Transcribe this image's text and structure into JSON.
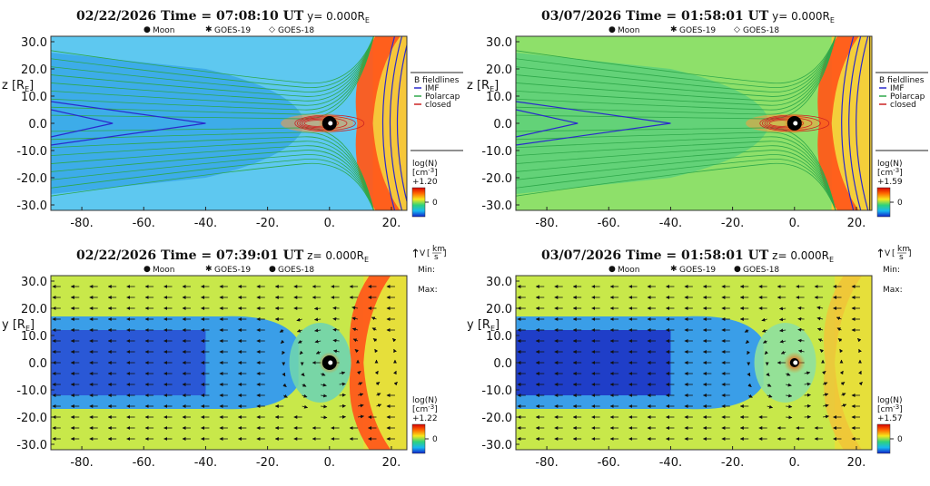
{
  "colors": {
    "imf": "#2a2acc",
    "polarcap": "#2fa84a",
    "closed": "#cc2222"
  },
  "chart_data": [
    {
      "id": "p1",
      "type": "heatmap",
      "plane": "xz",
      "date": "02/22/2026",
      "time_label": "Time",
      "time": "07:08:10",
      "time_unit": "UT",
      "slice_axis": "y",
      "slice_value": "0.000",
      "slice_unit": "R",
      "slice_unit_sub": "E",
      "markers": [
        "Moon",
        "GOES-19",
        "GOES-18"
      ],
      "ylabel": "z",
      "ylabel_unit": "R",
      "ylabel_unit_sub": "E",
      "xticks": [
        "-80.",
        "-60.",
        "-40.",
        "-20.",
        "0.",
        "20."
      ],
      "xtick_values": [
        -80,
        -60,
        -40,
        -20,
        0,
        20
      ],
      "yticks": [
        "30.0",
        "20.0",
        "10.0",
        "0.0",
        "-10.0",
        "-20.0",
        "-30.0"
      ],
      "ytick_values": [
        30,
        20,
        10,
        0,
        -10,
        -20,
        -30
      ],
      "xlim": [
        -90,
        25
      ],
      "ylim": [
        -32,
        32
      ],
      "magnetopause_standoff": 9,
      "bowshock_standoff": 14,
      "legend_title": "B fieldlines",
      "legend": [
        "IMF",
        "Polarcap",
        "closed"
      ],
      "colorbar_title": "log(N)",
      "colorbar_unit": "[cm",
      "colorbar_exp": "-3",
      "colorbar_max": "+1.20",
      "colorbar_mid": "0"
    },
    {
      "id": "p2",
      "type": "heatmap",
      "plane": "xz",
      "date": "03/07/2026",
      "time_label": "Time",
      "time": "01:58:01",
      "time_unit": "UT",
      "slice_axis": "y",
      "slice_value": "0.000",
      "slice_unit": "R",
      "slice_unit_sub": "E",
      "markers": [
        "Moon",
        "GOES-19",
        "GOES-18"
      ],
      "ylabel": "z",
      "ylabel_unit": "R",
      "ylabel_unit_sub": "E",
      "xticks": [
        "-80.",
        "-60.",
        "-40.",
        "-20.",
        "0.",
        "20."
      ],
      "xtick_values": [
        -80,
        -60,
        -40,
        -20,
        0,
        20
      ],
      "yticks": [
        "30.0",
        "20.0",
        "10.0",
        "0.0",
        "-10.0",
        "-20.0",
        "-30.0"
      ],
      "ytick_values": [
        30,
        20,
        10,
        0,
        -10,
        -20,
        -30
      ],
      "xlim": [
        -90,
        25
      ],
      "ylim": [
        -32,
        32
      ],
      "magnetopause_standoff": 8,
      "bowshock_standoff": 12,
      "legend_title": "B fieldlines",
      "legend": [
        "IMF",
        "Polarcap",
        "closed"
      ],
      "colorbar_title": "log(N)",
      "colorbar_unit": "[cm",
      "colorbar_exp": "-3",
      "colorbar_max": "+1.59",
      "colorbar_mid": "0"
    },
    {
      "id": "p3",
      "type": "heatmap",
      "plane": "xy",
      "date": "02/22/2026",
      "time_label": "Time",
      "time": "07:39:01",
      "time_unit": "UT",
      "slice_axis": "z",
      "slice_value": "0.000",
      "slice_unit": "R",
      "slice_unit_sub": "E",
      "markers": [
        "Moon",
        "GOES-19",
        "GOES-18"
      ],
      "ylabel": "y",
      "ylabel_unit": "R",
      "ylabel_unit_sub": "E",
      "xticks": [
        "-80.",
        "-60.",
        "-40.",
        "-20.",
        "0.",
        "20."
      ],
      "xtick_values": [
        -80,
        -60,
        -40,
        -20,
        0,
        20
      ],
      "yticks": [
        "30.0",
        "20.0",
        "10.0",
        "0.0",
        "-10.0",
        "-20.0",
        "-30.0"
      ],
      "ytick_values": [
        30,
        20,
        10,
        0,
        -10,
        -20,
        -30
      ],
      "xlim": [
        -90,
        25
      ],
      "ylim": [
        -32,
        32
      ],
      "magnetopause_standoff": 7,
      "bowshock_standoff": 11,
      "vector_label": "V",
      "vector_unit_num": "km",
      "vector_unit_den": "s",
      "vector_min_label": "Min:",
      "vector_max_label": "Max:",
      "colorbar_title": "log(N)",
      "colorbar_unit": "[cm",
      "colorbar_exp": "-3",
      "colorbar_max": "+1.22",
      "colorbar_mid": "0"
    },
    {
      "id": "p4",
      "type": "heatmap",
      "plane": "xy",
      "date": "03/07/2026",
      "time_label": "Time",
      "time": "01:58:01",
      "time_unit": "UT",
      "slice_axis": "z",
      "slice_value": "0.000",
      "slice_unit": "R",
      "slice_unit_sub": "E",
      "markers": [
        "Moon",
        "GOES-19",
        "GOES-18"
      ],
      "ylabel": "y",
      "ylabel_unit": "R",
      "ylabel_unit_sub": "E",
      "xticks": [
        "-80.",
        "-60.",
        "-40.",
        "-20.",
        "0.",
        "20."
      ],
      "xtick_values": [
        -80,
        -60,
        -40,
        -20,
        0,
        20
      ],
      "yticks": [
        "30.0",
        "20.0",
        "10.0",
        "0.0",
        "-10.0",
        "-20.0",
        "-30.0"
      ],
      "ytick_values": [
        30,
        20,
        10,
        0,
        -10,
        -20,
        -30
      ],
      "xlim": [
        -90,
        25
      ],
      "ylim": [
        -32,
        32
      ],
      "magnetopause_standoff": 10,
      "bowshock_standoff": 13,
      "vector_label": "V",
      "vector_unit_num": "km",
      "vector_unit_den": "s",
      "vector_min_label": "Min:",
      "vector_max_label": "Max:",
      "colorbar_title": "log(N)",
      "colorbar_unit": "[cm",
      "colorbar_exp": "-3",
      "colorbar_max": "+1.57",
      "colorbar_mid": "0"
    }
  ]
}
